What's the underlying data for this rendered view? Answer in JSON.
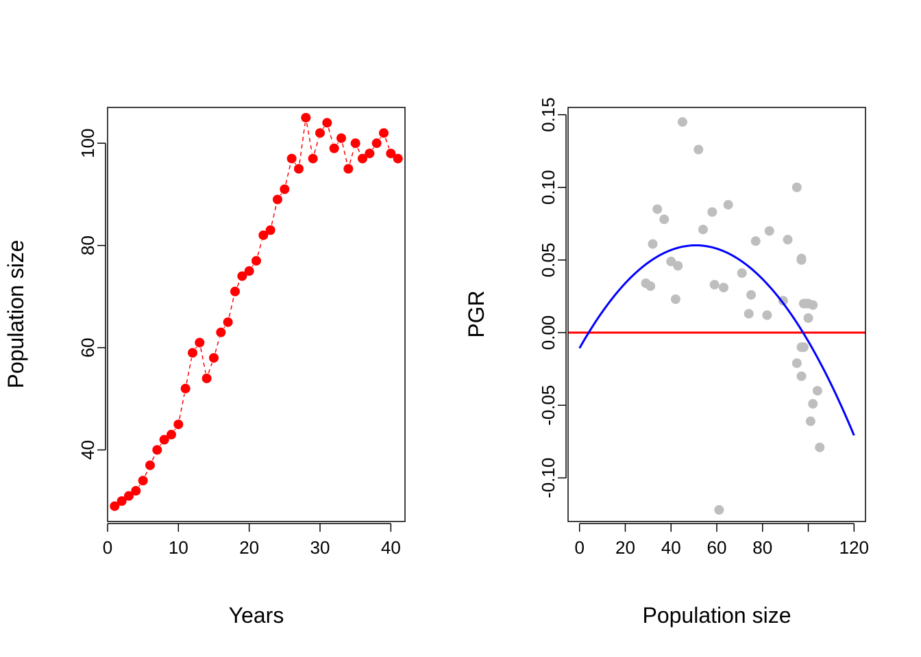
{
  "chart_data": [
    {
      "type": "scatter",
      "xlabel": "Years",
      "ylabel": "Population size",
      "xlim": [
        0,
        42
      ],
      "ylim": [
        26,
        107
      ],
      "x_ticks": [
        0,
        10,
        20,
        30,
        40
      ],
      "y_ticks": [
        40,
        60,
        80,
        100
      ],
      "x_tick_labels": [
        "0",
        "10",
        "20",
        "30",
        "40"
      ],
      "y_tick_labels": [
        "40",
        "60",
        "80",
        "100"
      ],
      "grid": false,
      "colors": {
        "points": "#ff0000",
        "line": "#ff0000"
      },
      "line_style": "dashed",
      "series": [
        {
          "x": [
            1,
            2,
            3,
            4,
            5,
            6,
            7,
            8,
            9,
            10,
            11,
            12,
            13,
            14,
            15,
            16,
            17,
            18,
            19,
            20,
            21,
            22,
            23,
            24,
            25,
            26,
            27,
            28,
            29,
            30,
            31,
            32,
            33,
            34,
            35,
            36,
            37,
            38,
            39,
            40,
            41
          ],
          "y": [
            29,
            30,
            31,
            32,
            34,
            37,
            40,
            42,
            43,
            45,
            52,
            59,
            61,
            54,
            58,
            63,
            65,
            71,
            74,
            75,
            77,
            82,
            83,
            89,
            91,
            97,
            95,
            105,
            97,
            102,
            104,
            99,
            101,
            95,
            100,
            97,
            98,
            100,
            102,
            98,
            97
          ]
        }
      ]
    },
    {
      "type": "scatter",
      "xlabel": "Population size",
      "ylabel": "PGR",
      "xlim": [
        -5,
        125
      ],
      "ylim": [
        -0.13,
        0.155
      ],
      "x_ticks": [
        0,
        20,
        40,
        60,
        80,
        120
      ],
      "x_minor_ticks": [
        100
      ],
      "y_ticks": [
        -0.1,
        -0.05,
        0.0,
        0.05,
        0.1,
        0.15
      ],
      "x_tick_labels": [
        "0",
        "20",
        "40",
        "60",
        "80",
        "120"
      ],
      "y_tick_labels": [
        "-0.10",
        "-0.05",
        "0.00",
        "0.05",
        "0.10",
        "0.15"
      ],
      "grid": false,
      "colors": {
        "points": "#bebebe",
        "hline": "#ff0000",
        "curve": "#0000ff"
      },
      "hline_y": 0.0,
      "curve_polynomial": {
        "a": -0.0107,
        "b": 0.002784,
        "c": -2.737e-05,
        "x_range": [
          0,
          120
        ]
      },
      "series": [
        {
          "x": [
            29,
            31,
            32,
            34,
            37,
            40,
            42,
            43,
            45,
            52,
            59,
            61,
            54,
            58,
            63,
            65,
            71,
            74,
            75,
            77,
            82,
            83,
            89,
            91,
            97,
            95,
            105,
            97,
            102,
            104,
            99,
            101,
            95,
            100,
            97,
            98,
            100,
            102,
            98,
            97
          ],
          "y": [
            0.034,
            0.032,
            0.061,
            0.085,
            0.078,
            0.049,
            0.023,
            0.046,
            0.145,
            0.126,
            0.033,
            -0.122,
            0.071,
            0.083,
            0.031,
            0.088,
            0.041,
            0.013,
            0.026,
            0.063,
            0.012,
            0.07,
            0.022,
            0.064,
            0.051,
            0.1,
            -0.079,
            0.05,
            -0.049,
            -0.04,
            0.02,
            -0.061,
            -0.021,
            0.02,
            -0.03,
            -0.01,
            0.01,
            0.019,
            0.02,
            -0.01
          ]
        }
      ]
    }
  ]
}
